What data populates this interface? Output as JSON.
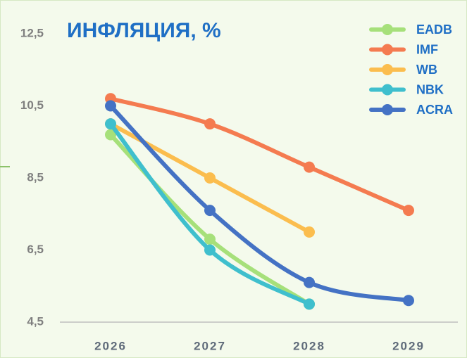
{
  "chart_data": {
    "type": "line",
    "title": "ИНФЛЯЦИЯ, %",
    "categories": [
      "2026",
      "2027",
      "2028",
      "2029"
    ],
    "series": [
      {
        "name": "EADB",
        "color": "#a6e07a",
        "values": [
          9.7,
          6.8,
          5.0,
          null
        ]
      },
      {
        "name": "IMF",
        "color": "#f47b50",
        "values": [
          10.7,
          10.0,
          8.8,
          7.6
        ]
      },
      {
        "name": "WB",
        "color": "#fbbd4e",
        "values": [
          10.0,
          8.5,
          7.0,
          null
        ]
      },
      {
        "name": "NBK",
        "color": "#3fbfcd",
        "values": [
          10.0,
          6.5,
          5.0,
          null
        ]
      },
      {
        "name": "ACRA",
        "color": "#4472c4",
        "values": [
          10.5,
          7.6,
          5.6,
          5.1
        ]
      }
    ],
    "ylim": [
      4.5,
      12.5
    ],
    "yticks": [
      {
        "value": 4.5,
        "label": "4,5"
      },
      {
        "value": 6.5,
        "label": "6,5"
      },
      {
        "value": 8.5,
        "label": "8,5"
      },
      {
        "value": 10.5,
        "label": "10,5"
      },
      {
        "value": 12.5,
        "label": "12,5"
      }
    ],
    "grid": false,
    "legend": "top-right"
  }
}
